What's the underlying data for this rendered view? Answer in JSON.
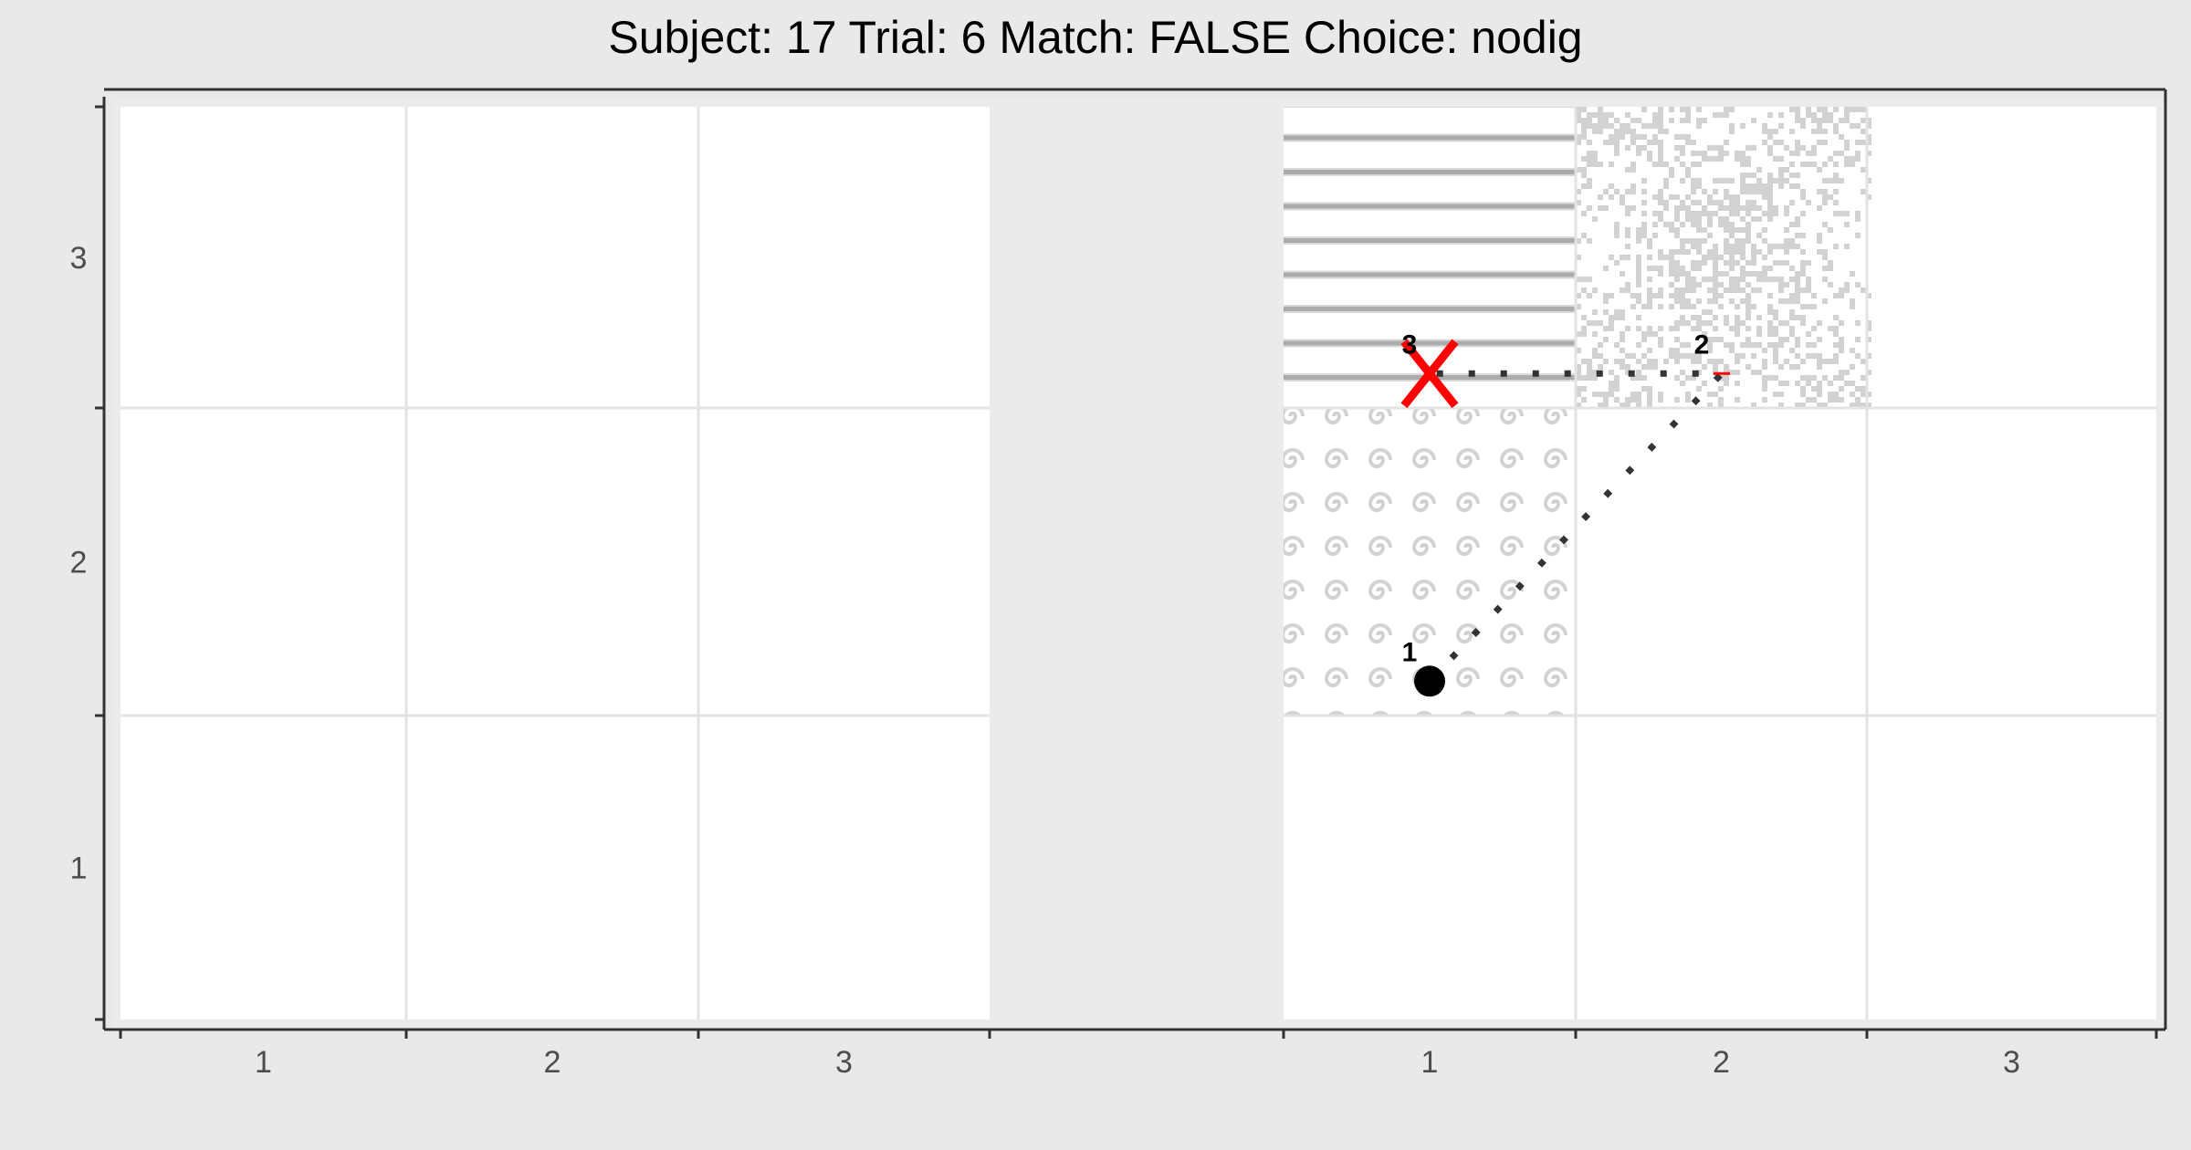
{
  "title": "Subject:  17  Trial:  6  Match: FALSE  Choice: nodig",
  "chart_data": {
    "type": "scatter",
    "title": "Subject:  17  Trial:  6  Match: FALSE  Choice: nodig",
    "xlabel": "",
    "ylabel": "",
    "grid": true,
    "colors": {
      "background": "#e9e9e9",
      "panel": "#ffffff",
      "gridline": "#e3e3e3",
      "texture": "#d2d2d2",
      "stripe": "#ababab",
      "path": "#333333",
      "end_marker": "#ff0000",
      "start_marker": "#000000"
    },
    "left_panel": {
      "x_ticks": [
        "1",
        "2",
        "3"
      ],
      "y_ticks": [
        "1",
        "2",
        "3"
      ],
      "textured_cells": []
    },
    "right_panel": {
      "x_ticks": [
        "1",
        "2",
        "3"
      ],
      "y_ticks": [
        "1",
        "2",
        "3"
      ],
      "textured_cells": [
        {
          "col": 1,
          "row": 3,
          "texture": "stripes"
        },
        {
          "col": 2,
          "row": 3,
          "texture": "noise"
        },
        {
          "col": 1,
          "row": 2,
          "texture": "swirls"
        }
      ],
      "path": [
        {
          "label": "1",
          "x": 1.0,
          "y": 1.6
        },
        {
          "label": "2",
          "x": 2.0,
          "y": 2.6
        },
        {
          "label": "3",
          "x": 1.0,
          "y": 2.6
        }
      ],
      "start_marker": "circle",
      "end_marker": "x"
    }
  }
}
